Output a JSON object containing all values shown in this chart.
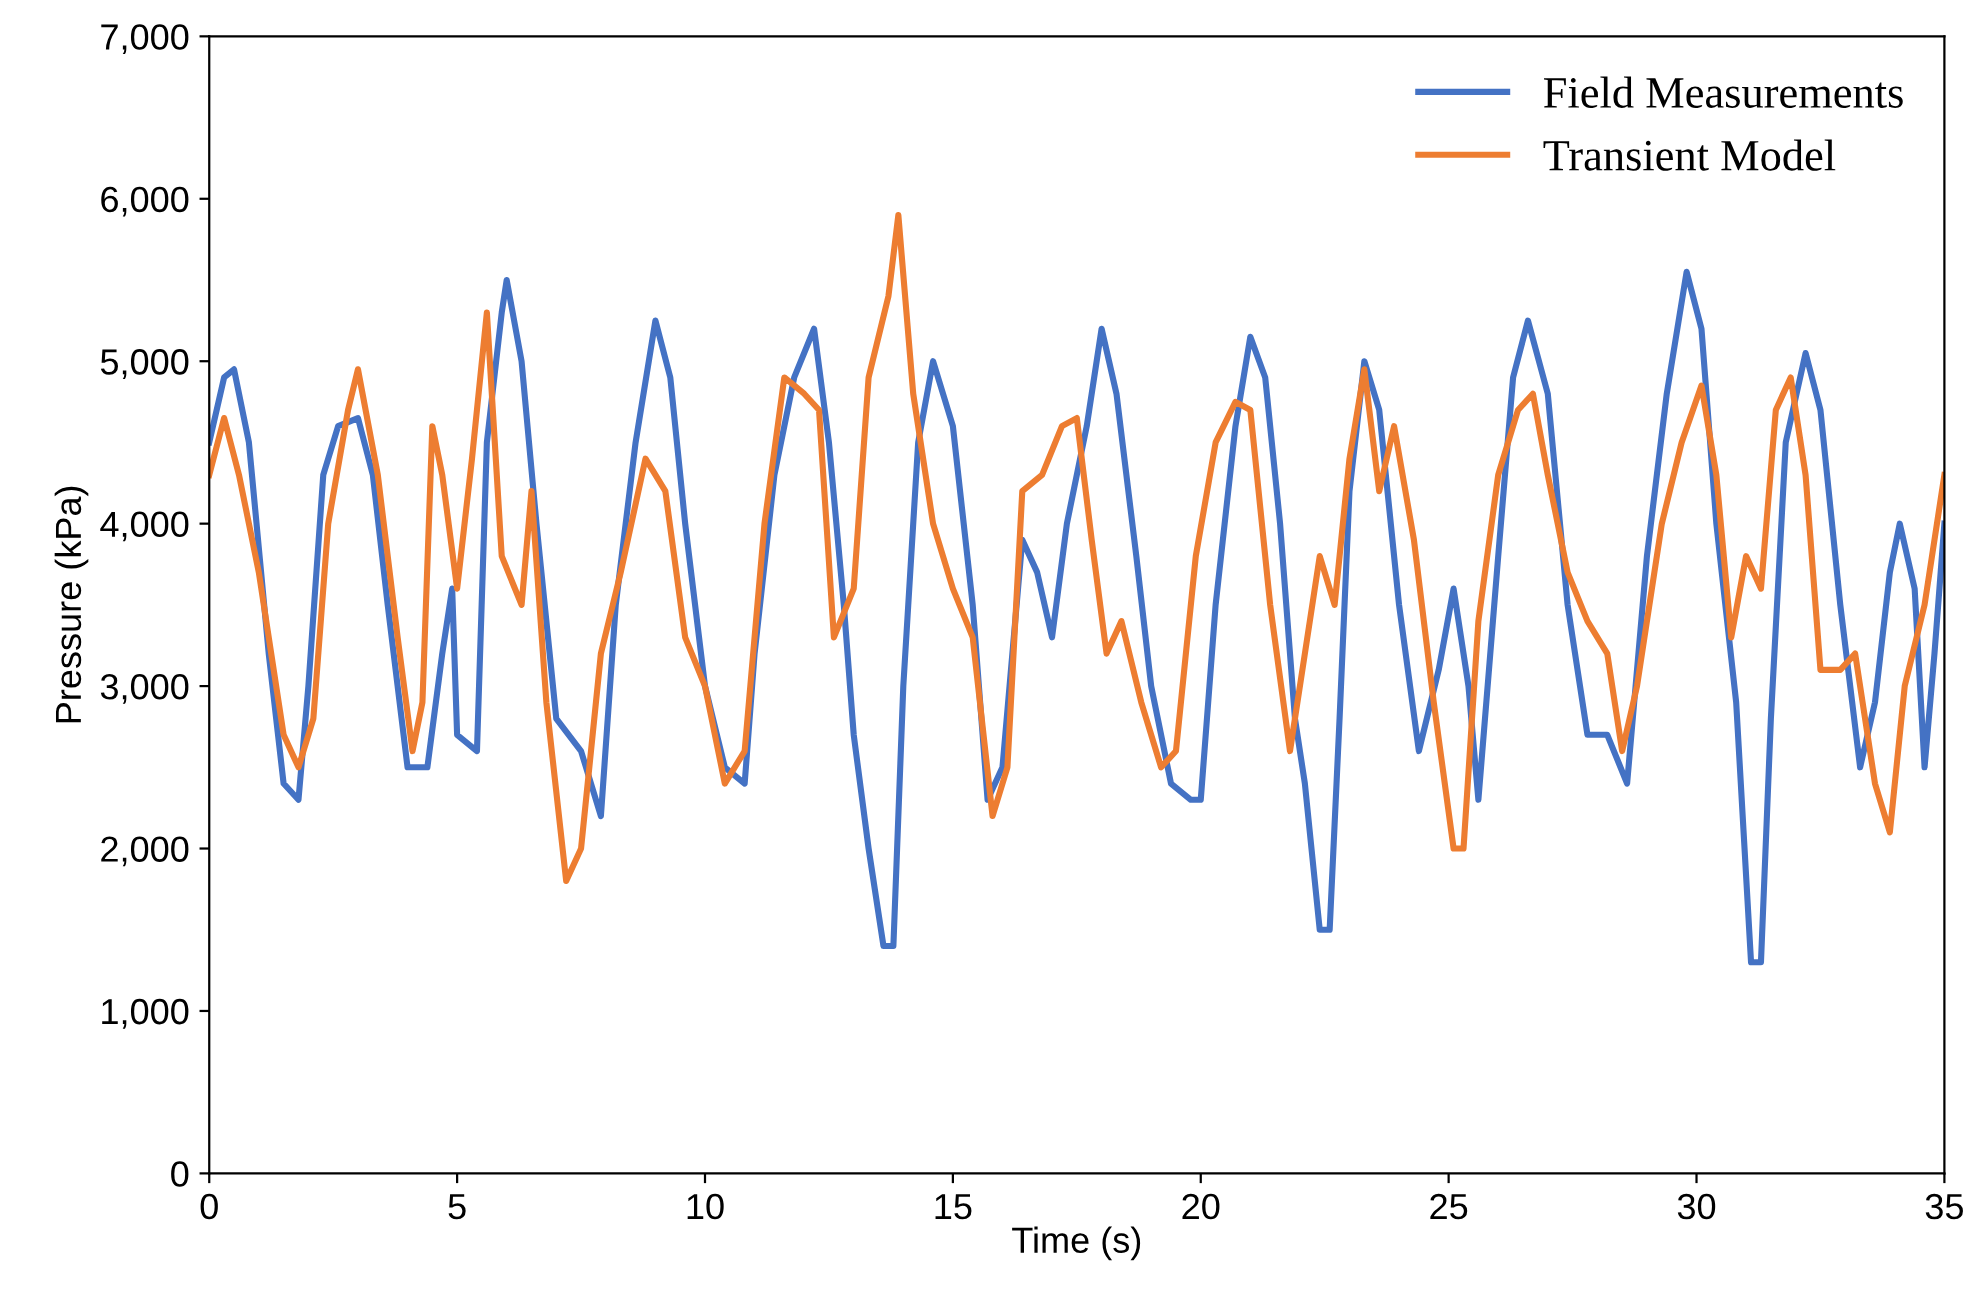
{
  "chart_data": {
    "type": "line",
    "xlabel": "Time (s)",
    "ylabel": "Pressure (kPa)",
    "xlim": [
      0,
      35
    ],
    "xticks": [
      0,
      5,
      10,
      15,
      20,
      25,
      30,
      35
    ],
    "ylim": [
      0,
      7000
    ],
    "yticks": [
      {
        "value": 0,
        "label": "0"
      },
      {
        "value": 1000,
        "label": "1,000"
      },
      {
        "value": 2000,
        "label": "2,000"
      },
      {
        "value": 3000,
        "label": "3,000"
      },
      {
        "value": 4000,
        "label": "4,000"
      },
      {
        "value": 5000,
        "label": "5,000"
      },
      {
        "value": 6000,
        "label": "6,000"
      },
      {
        "value": 7000,
        "label": "7,000"
      }
    ],
    "grid": false,
    "legend": "top right",
    "marker": "none",
    "line_style": "solid",
    "series": [
      {
        "name": "Field Measurements",
        "color": "#4472c4",
        "x": [
          0,
          0.3,
          0.5,
          0.8,
          1.2,
          1.5,
          1.8,
          2.0,
          2.3,
          2.6,
          3.0,
          3.3,
          3.6,
          4.0,
          4.4,
          4.7,
          4.9,
          5.0,
          5.4,
          5.6,
          5.9,
          6.0,
          6.3,
          6.6,
          7.0,
          7.5,
          7.9,
          8.2,
          8.6,
          9.0,
          9.3,
          9.6,
          10.0,
          10.4,
          10.8,
          11.0,
          11.4,
          11.8,
          12.2,
          12.5,
          12.8,
          13.0,
          13.3,
          13.6,
          13.8,
          14.0,
          14.3,
          14.6,
          15.0,
          15.4,
          15.7,
          16.0,
          16.4,
          16.7,
          17.0,
          17.3,
          17.7,
          18.0,
          18.3,
          18.7,
          19.0,
          19.4,
          19.8,
          20.0,
          20.3,
          20.7,
          21.0,
          21.3,
          21.6,
          21.9,
          22.1,
          22.4,
          22.6,
          22.8,
          23.0,
          23.3,
          23.6,
          24.0,
          24.4,
          24.8,
          25.1,
          25.4,
          25.6,
          26.0,
          26.3,
          26.6,
          27.0,
          27.4,
          27.8,
          28.2,
          28.6,
          29.0,
          29.4,
          29.8,
          30.1,
          30.4,
          30.8,
          31.1,
          31.3,
          31.5,
          31.8,
          32.2,
          32.5,
          32.9,
          33.3,
          33.6,
          33.9,
          34.1,
          34.4,
          34.6,
          34.8,
          35.0
        ],
        "values": [
          4500,
          4900,
          4950,
          4500,
          3200,
          2400,
          2300,
          3000,
          4300,
          4600,
          4650,
          4300,
          3500,
          2500,
          2500,
          3200,
          3600,
          2700,
          2600,
          4500,
          5300,
          5500,
          5000,
          4000,
          2800,
          2600,
          2200,
          3500,
          4500,
          5250,
          4900,
          4000,
          3000,
          2500,
          2400,
          3200,
          4300,
          4900,
          5200,
          4500,
          3500,
          2700,
          2000,
          1400,
          1400,
          3000,
          4500,
          5000,
          4600,
          3500,
          2300,
          2500,
          3900,
          3700,
          3300,
          4000,
          4600,
          5200,
          4800,
          3800,
          3000,
          2400,
          2300,
          2300,
          3500,
          4600,
          5150,
          4900,
          4000,
          2800,
          2400,
          1500,
          1500,
          2800,
          4200,
          5000,
          4700,
          3500,
          2600,
          3100,
          3600,
          3000,
          2300,
          3800,
          4900,
          5250,
          4800,
          3500,
          2700,
          2700,
          2400,
          3800,
          4800,
          5550,
          5200,
          4000,
          2900,
          1300,
          1300,
          2800,
          4500,
          5050,
          4700,
          3500,
          2500,
          2900,
          3700,
          4000,
          3600,
          2500,
          3200,
          4000
        ]
      },
      {
        "name": "Transient Model",
        "color": "#ed7d31",
        "x": [
          0,
          0.3,
          0.6,
          1.0,
          1.5,
          1.8,
          2.1,
          2.4,
          2.8,
          3.0,
          3.4,
          3.8,
          4.1,
          4.3,
          4.5,
          4.7,
          5.0,
          5.3,
          5.6,
          5.9,
          6.3,
          6.5,
          6.8,
          7.2,
          7.5,
          7.9,
          8.3,
          8.8,
          9.2,
          9.6,
          10.0,
          10.4,
          10.8,
          11.2,
          11.6,
          12.0,
          12.3,
          12.6,
          13.0,
          13.3,
          13.7,
          13.9,
          14.2,
          14.6,
          15.0,
          15.4,
          15.8,
          16.1,
          16.4,
          16.8,
          17.2,
          17.5,
          17.8,
          18.1,
          18.4,
          18.8,
          19.2,
          19.5,
          19.9,
          20.3,
          20.7,
          21.0,
          21.4,
          21.8,
          22.1,
          22.4,
          22.7,
          23.0,
          23.3,
          23.6,
          23.9,
          24.3,
          24.7,
          25.1,
          25.3,
          25.6,
          26.0,
          26.4,
          26.7,
          27.0,
          27.4,
          27.8,
          28.2,
          28.5,
          28.8,
          29.3,
          29.7,
          30.1,
          30.4,
          30.7,
          31.0,
          31.3,
          31.6,
          31.9,
          32.2,
          32.5,
          32.9,
          33.2,
          33.6,
          33.9,
          34.2,
          34.6,
          35.0
        ],
        "values": [
          4300,
          4650,
          4300,
          3700,
          2700,
          2500,
          2800,
          4000,
          4700,
          4950,
          4300,
          3300,
          2600,
          2900,
          4600,
          4300,
          3600,
          4400,
          5300,
          3800,
          3500,
          4200,
          2900,
          1800,
          2000,
          3200,
          3700,
          4400,
          4200,
          3300,
          3000,
          2400,
          2600,
          4000,
          4900,
          4800,
          4700,
          3300,
          3600,
          4900,
          5400,
          5900,
          4800,
          4000,
          3600,
          3300,
          2200,
          2500,
          4200,
          4300,
          4600,
          4650,
          3900,
          3200,
          3400,
          2900,
          2500,
          2600,
          3800,
          4500,
          4750,
          4700,
          3500,
          2600,
          3200,
          3800,
          3500,
          4400,
          4950,
          4200,
          4600,
          3900,
          2900,
          2000,
          2000,
          3400,
          4300,
          4700,
          4800,
          4300,
          3700,
          3400,
          3200,
          2600,
          3000,
          4000,
          4500,
          4850,
          4300,
          3300,
          3800,
          3600,
          4700,
          4900,
          4300,
          3100,
          3100,
          3200,
          2400,
          2100,
          3000,
          3500,
          4300
        ]
      }
    ]
  }
}
